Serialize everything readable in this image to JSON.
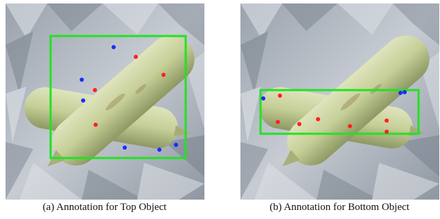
{
  "figure": {
    "panels": [
      {
        "caption": "(a) Annotation for Top Object"
      },
      {
        "caption": "(b) Annotation for Bottom Object"
      }
    ]
  }
}
